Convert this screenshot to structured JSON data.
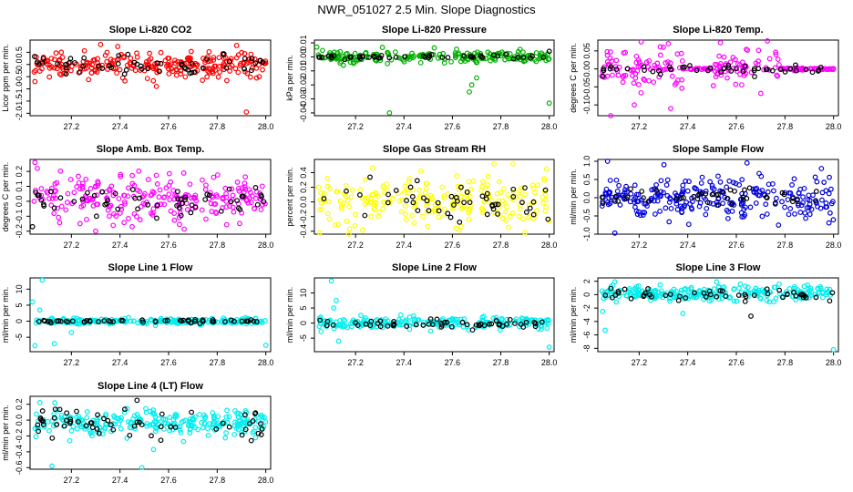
{
  "main_title": "NWR_051027  2.5 Min. Slope Diagnostics",
  "chart_data": [
    {
      "type": "scatter",
      "title": "Slope Li-820 CO2",
      "ylabel": "Licor ppm per min.",
      "xlabel": "",
      "xlim": [
        27.03,
        28.02
      ],
      "ylim": [
        -2.1,
        1.0
      ],
      "xticks": [
        "27.2",
        "27.4",
        "27.6",
        "27.8",
        "28.0"
      ],
      "yticks": [
        "-2.0",
        "-1.5",
        "-1.0",
        "-0.5",
        "0.0",
        "0.5"
      ],
      "series": [
        {
          "name": "all",
          "color": "#ff0000",
          "n": 240,
          "center": -0.05,
          "spread": 0.26,
          "outliers": [
            [
              27.32,
              0.82
            ],
            [
              27.88,
              0.78
            ],
            [
              27.92,
              -1.95
            ],
            [
              27.55,
              -0.9
            ],
            [
              27.05,
              -0.7
            ]
          ]
        },
        {
          "name": "selected",
          "color": "#000000",
          "n": 55,
          "center": -0.05,
          "spread": 0.2,
          "outliers": []
        }
      ]
    },
    {
      "type": "scatter",
      "title": "Slope Li-820 Pressure",
      "ylabel": "kPa per min.",
      "xlabel": "",
      "xlim": [
        27.03,
        28.02
      ],
      "ylim": [
        -0.042,
        0.012
      ],
      "xticks": [
        "27.2",
        "27.4",
        "27.6",
        "27.8",
        "28.0"
      ],
      "yticks": [
        "-0.04",
        "-0.03",
        "-0.02",
        "-0.01",
        "0.00",
        "0.01"
      ],
      "series": [
        {
          "name": "all",
          "color": "#00b000",
          "n": 200,
          "center": 0.0,
          "spread": 0.0022,
          "outliers": [
            [
              27.34,
              -0.04
            ],
            [
              27.67,
              -0.025
            ],
            [
              27.68,
              -0.02
            ],
            [
              28.0,
              -0.033
            ],
            [
              27.04,
              0.007
            ],
            [
              27.7,
              -0.015
            ],
            [
              27.15,
              -0.006
            ]
          ]
        },
        {
          "name": "selected",
          "color": "#000000",
          "n": 50,
          "center": 0.0,
          "spread": 0.0006,
          "outliers": [
            [
              28.0,
              0.004
            ]
          ]
        }
      ]
    },
    {
      "type": "scatter",
      "title": "Slope Li-820 Temp.",
      "ylabel": "degrees C per min.",
      "xlabel": "",
      "xlim": [
        27.03,
        28.02
      ],
      "ylim": [
        -0.13,
        0.08
      ],
      "xticks": [
        "27.2",
        "27.4",
        "27.6",
        "27.8",
        "28.0"
      ],
      "yticks": [
        "-0.10",
        "-0.05",
        "0.00",
        "0.05"
      ],
      "series": [
        {
          "name": "all",
          "color": "#ff00ff",
          "n": 220,
          "center": 0.0,
          "spread": 0.03,
          "band": [
            [
              27.04,
              27.38
            ],
            [
              27.5,
              27.78
            ]
          ],
          "outliers": [
            [
              27.32,
              0.07
            ],
            [
              27.33,
              -0.11
            ],
            [
              27.18,
              -0.1
            ],
            [
              27.3,
              0.06
            ]
          ]
        },
        {
          "name": "selected",
          "color": "#000000",
          "n": 45,
          "center": 0.0,
          "spread": 0.01,
          "outliers": []
        }
      ]
    },
    {
      "type": "scatter",
      "title": "Slope Amb. Box Temp.",
      "ylabel": "degrees C per min.",
      "xlabel": "",
      "xlim": [
        27.03,
        28.02
      ],
      "ylim": [
        -0.22,
        0.28
      ],
      "xticks": [
        "27.2",
        "27.4",
        "27.6",
        "27.8",
        "28.0"
      ],
      "yticks": [
        "-0.2",
        "-0.1",
        "0.0",
        "0.1",
        "0.2"
      ],
      "series": [
        {
          "name": "all",
          "color": "#ff00ff",
          "n": 240,
          "center": 0.02,
          "spread": 0.07,
          "outliers": [
            [
              27.05,
              0.26
            ],
            [
              27.06,
              0.22
            ],
            [
              27.3,
              -0.2
            ],
            [
              27.45,
              -0.17
            ]
          ]
        },
        {
          "name": "selected",
          "color": "#000000",
          "n": 55,
          "center": 0.0,
          "spread": 0.05,
          "outliers": [
            [
              27.04,
              -0.17
            ]
          ]
        }
      ]
    },
    {
      "type": "scatter",
      "title": "Slope Gas Stream RH",
      "ylabel": "percent per min.",
      "xlabel": "",
      "xlim": [
        27.03,
        28.02
      ],
      "ylim": [
        -0.44,
        0.58
      ],
      "xticks": [
        "27.2",
        "27.4",
        "27.6",
        "27.8",
        "28.0"
      ],
      "yticks": [
        "-0.4",
        "-0.2",
        "0.0",
        "0.2",
        "0.4"
      ],
      "series": [
        {
          "name": "all",
          "color": "#ffff00",
          "n": 230,
          "center": 0.03,
          "spread": 0.16,
          "outliers": [
            [
              27.85,
              0.52
            ],
            [
              27.9,
              -0.42
            ]
          ]
        },
        {
          "name": "selected",
          "color": "#000000",
          "n": 50,
          "center": 0.0,
          "spread": 0.13,
          "outliers": []
        }
      ]
    },
    {
      "type": "scatter",
      "title": "Slope Sample Flow",
      "ylabel": "ml/min per min.",
      "xlabel": "",
      "xlim": [
        27.03,
        28.02
      ],
      "ylim": [
        -1.0,
        1.05
      ],
      "xticks": [
        "27.2",
        "27.4",
        "27.6",
        "27.8",
        "28.0"
      ],
      "yticks": [
        "-1.0",
        "-0.5",
        "0.0",
        "0.5",
        "1.0"
      ],
      "series": [
        {
          "name": "all",
          "color": "#0000dd",
          "n": 260,
          "center": 0.0,
          "spread": 0.28,
          "outliers": [
            [
              27.07,
              1.0
            ],
            [
              27.1,
              -0.97
            ],
            [
              27.95,
              0.8
            ]
          ]
        },
        {
          "name": "selected",
          "color": "#000000",
          "n": 45,
          "center": 0.0,
          "spread": 0.12,
          "outliers": []
        }
      ]
    },
    {
      "type": "scatter",
      "title": "Slope Line 1 Flow",
      "ylabel": "ml/min per min.",
      "xlabel": "",
      "xlim": [
        27.03,
        28.02
      ],
      "ylim": [
        -9.5,
        13.5
      ],
      "xticks": [
        "27.2",
        "27.4",
        "27.6",
        "27.8",
        "28.0"
      ],
      "yticks": [
        "-5",
        "0",
        "5",
        "10"
      ],
      "series": [
        {
          "name": "all",
          "color": "#00eeee",
          "n": 220,
          "center": 0.0,
          "spread": 0.45,
          "outliers": [
            [
              27.04,
              6.0
            ],
            [
              27.08,
              12.8
            ],
            [
              27.05,
              -7.6
            ],
            [
              27.13,
              -7.0
            ],
            [
              27.2,
              -3.5
            ],
            [
              28.0,
              -7.5
            ],
            [
              27.07,
              3.5
            ]
          ]
        },
        {
          "name": "selected",
          "color": "#000000",
          "n": 55,
          "center": 0.0,
          "spread": 0.25,
          "outliers": []
        }
      ]
    },
    {
      "type": "scatter",
      "title": "Slope Line 2 Flow",
      "ylabel": "ml/min per min.",
      "xlabel": "",
      "xlim": [
        27.03,
        28.02
      ],
      "ylim": [
        -9.5,
        15.0
      ],
      "xticks": [
        "27.2",
        "27.4",
        "27.6",
        "27.8",
        "28.0"
      ],
      "yticks": [
        "-5",
        "0",
        "5",
        "10"
      ],
      "series": [
        {
          "name": "all",
          "color": "#00eeee",
          "n": 220,
          "center": 0.0,
          "spread": 0.9,
          "outliers": [
            [
              27.1,
              14.0
            ],
            [
              27.12,
              7.5
            ],
            [
              27.11,
              5.0
            ],
            [
              27.13,
              -6.0
            ],
            [
              28.0,
              -8.0
            ]
          ]
        },
        {
          "name": "selected",
          "color": "#000000",
          "n": 55,
          "center": -0.3,
          "spread": 0.6,
          "outliers": []
        }
      ]
    },
    {
      "type": "scatter",
      "title": "Slope Line 3 Flow",
      "ylabel": "ml/min per min.",
      "xlabel": "",
      "xlim": [
        27.03,
        28.02
      ],
      "ylim": [
        -8.5,
        2.5
      ],
      "xticks": [
        "27.2",
        "27.4",
        "27.6",
        "27.8",
        "28.0"
      ],
      "yticks": [
        "-8",
        "-6",
        "-4",
        "-2",
        "0",
        "2"
      ],
      "series": [
        {
          "name": "all",
          "color": "#00eeee",
          "n": 240,
          "center": 0.2,
          "spread": 0.55,
          "outliers": [
            [
              27.06,
              -5.3
            ],
            [
              27.05,
              -2.5
            ],
            [
              28.0,
              -8.2
            ],
            [
              27.38,
              -2.8
            ],
            [
              27.1,
              1.9
            ]
          ]
        },
        {
          "name": "selected",
          "color": "#000000",
          "n": 50,
          "center": 0.0,
          "spread": 0.55,
          "outliers": [
            [
              27.66,
              -3.2
            ]
          ]
        }
      ]
    },
    {
      "type": "scatter",
      "title": "Slope Line 4 (LT) Flow",
      "ylabel": "ml/min per min.",
      "xlabel": "",
      "xlim": [
        27.03,
        28.02
      ],
      "ylim": [
        -0.62,
        0.3
      ],
      "xticks": [
        "27.2",
        "27.4",
        "27.6",
        "27.8",
        "28.0"
      ],
      "yticks": [
        "-0.6",
        "-0.4",
        "-0.2",
        "0.0",
        "0.2"
      ],
      "series": [
        {
          "name": "all",
          "color": "#00eeee",
          "n": 260,
          "center": -0.03,
          "spread": 0.075,
          "outliers": [
            [
              27.12,
              -0.58
            ],
            [
              27.49,
              -0.6
            ],
            [
              27.07,
              0.22
            ]
          ]
        },
        {
          "name": "selected",
          "color": "#000000",
          "n": 60,
          "center": -0.04,
          "spread": 0.09,
          "outliers": [
            [
              27.47,
              0.25
            ]
          ]
        }
      ]
    }
  ]
}
